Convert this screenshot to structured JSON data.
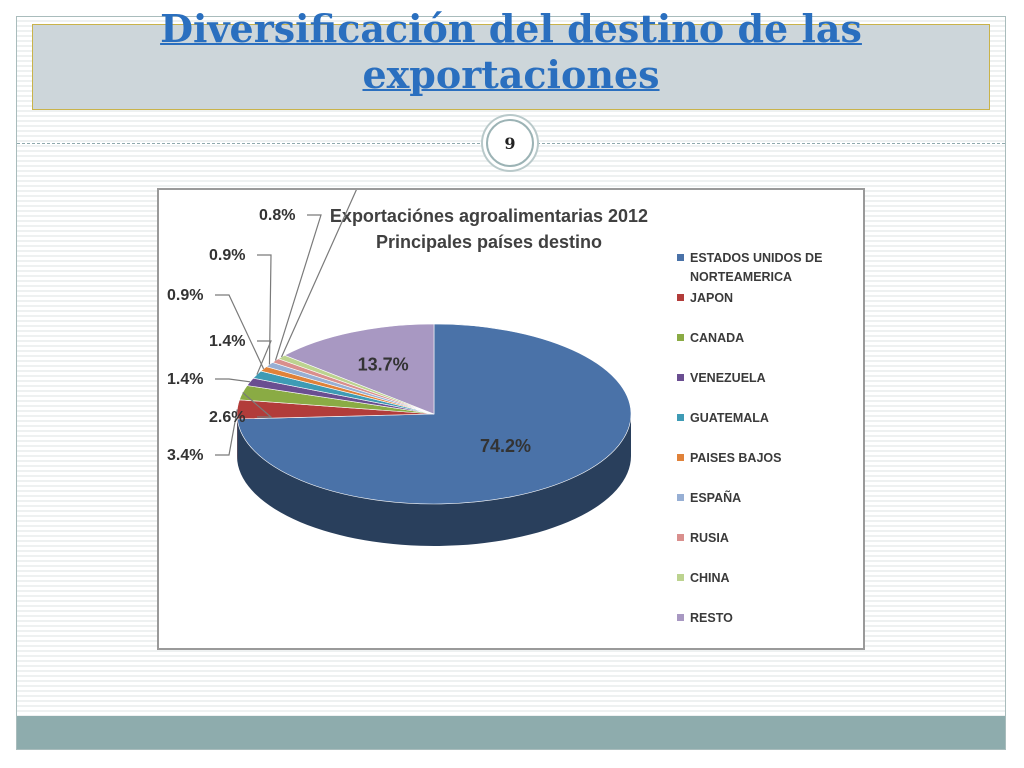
{
  "slide": {
    "title": "Diversificación del destino de las exportaciones",
    "page_number": "9"
  },
  "chart_data": {
    "type": "pie",
    "title": "Exportaciónes agroalimentarias 2012",
    "subtitle": "Principales países destino",
    "legend_position": "right",
    "slices": [
      {
        "label": "ESTADOS UNIDOS DE NORTEAMERICA",
        "value": 74.2,
        "display": "74.2%",
        "color": "#4a72a8"
      },
      {
        "label": "JAPON",
        "value": 3.4,
        "display": "3.4%",
        "color": "#b23c3a"
      },
      {
        "label": "CANADA",
        "value": 2.6,
        "display": "2.6%",
        "color": "#8aab44"
      },
      {
        "label": "VENEZUELA",
        "value": 1.4,
        "display": "1.4%",
        "color": "#6a4e91"
      },
      {
        "label": "GUATEMALA",
        "value": 1.4,
        "display": "1.4%",
        "color": "#3e9bb5"
      },
      {
        "label": "PAISES BAJOS",
        "value": 0.9,
        "display": "0.9%",
        "color": "#e0823a"
      },
      {
        "label": "ESPAÑA",
        "value": 0.9,
        "display": "0.9%",
        "color": "#97afd4"
      },
      {
        "label": "RUSIA",
        "value": 0.8,
        "display": "0.8%",
        "color": "#d98f8d"
      },
      {
        "label": "CHINA",
        "value": 0.8,
        "display": "0.8%",
        "color": "#bcd38f"
      },
      {
        "label": "RESTO",
        "value": 13.7,
        "display": "13.7%",
        "color": "#a898c2"
      }
    ]
  }
}
